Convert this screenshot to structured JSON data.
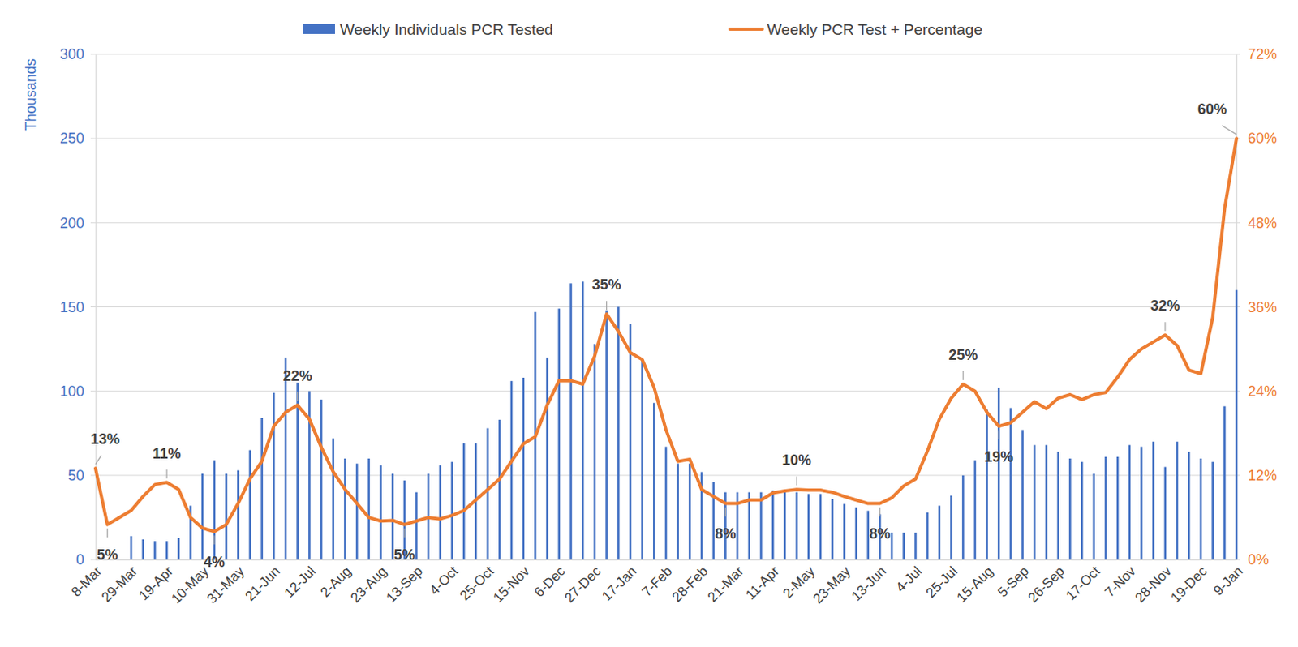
{
  "chart_data": {
    "type": "bar",
    "legend": "top",
    "grid": true,
    "y_label": "Thousands",
    "categories": [
      "8-Mar",
      null,
      null,
      "29-Mar",
      null,
      null,
      "19-Apr",
      null,
      null,
      "10-May",
      null,
      null,
      "31-May",
      null,
      null,
      "21-Jun",
      null,
      null,
      "12-Jul",
      null,
      null,
      "2-Aug",
      null,
      null,
      "23-Aug",
      null,
      null,
      "13-Sep",
      null,
      null,
      "4-Oct",
      null,
      null,
      "25-Oct",
      null,
      null,
      "15-Nov",
      null,
      null,
      "6-Dec",
      null,
      null,
      "27-Dec",
      null,
      null,
      "17-Jan",
      null,
      null,
      "7-Feb",
      null,
      null,
      "28-Feb",
      null,
      null,
      "21-Mar",
      null,
      null,
      "11-Apr",
      null,
      null,
      "2-May",
      null,
      null,
      "23-May",
      null,
      null,
      "13-Jun",
      null,
      null,
      "4-Jul",
      null,
      null,
      "25-Jul",
      null,
      null,
      "15-Aug",
      null,
      null,
      "5-Sep",
      null,
      null,
      "26-Sep",
      null,
      null,
      "17-Oct",
      null,
      null,
      "7-Nov",
      null,
      null,
      "28-Nov",
      null,
      null,
      "19-Dec",
      null,
      null,
      "9-Jan"
    ],
    "ylim": [
      0,
      300
    ],
    "yticks": [
      0,
      50,
      100,
      150,
      200,
      250,
      300
    ],
    "y2lim": [
      0,
      72
    ],
    "y2ticks": [
      {
        "value": 0,
        "label": "0%"
      },
      {
        "value": 12,
        "label": "12%"
      },
      {
        "value": 24,
        "label": "24%"
      },
      {
        "value": 36,
        "label": "36%"
      },
      {
        "value": 48,
        "label": "48%"
      },
      {
        "value": 60,
        "label": "60%"
      },
      {
        "value": 72,
        "label": "72%"
      }
    ],
    "series": [
      {
        "name": "Weekly Individuals PCR Tested",
        "type": "bar",
        "color": "#4472c4",
        "values": [
          null,
          null,
          null,
          14,
          12,
          11,
          11,
          13,
          32,
          51,
          59,
          51,
          53,
          65,
          84,
          99,
          120,
          105,
          100,
          95,
          72,
          60,
          57,
          60,
          56,
          51,
          47,
          40,
          51,
          56,
          58,
          69,
          69,
          78,
          83,
          106,
          108,
          147,
          120,
          149,
          164,
          165,
          128,
          148,
          150,
          140,
          118,
          93,
          67,
          57,
          57,
          52,
          46,
          40,
          40,
          40,
          40,
          41,
          41,
          40,
          39,
          39,
          36,
          33,
          31,
          29,
          27,
          16,
          16,
          16,
          28,
          32,
          38,
          50,
          59,
          89,
          102,
          90,
          77,
          68,
          68,
          64,
          60,
          58,
          51,
          61,
          61,
          68,
          67,
          70,
          55,
          70,
          64,
          60,
          58,
          91,
          160
        ]
      },
      {
        "name": "Weekly PCR Test + Percentage",
        "type": "line",
        "color": "#ed7d31",
        "axis": "y2",
        "data_labels": true,
        "values": [
          13,
          5,
          6,
          7,
          9,
          10.7,
          11,
          10,
          6,
          4.5,
          4,
          5,
          8,
          11.5,
          14,
          19,
          21,
          22,
          20,
          16,
          12.5,
          10,
          8,
          6,
          5.5,
          5.6,
          5,
          5.5,
          6,
          5.8,
          6.3,
          7,
          8.5,
          10,
          11.5,
          14,
          16.5,
          17.5,
          22,
          25.5,
          25.5,
          25,
          29,
          35,
          32.5,
          29.5,
          28.5,
          24.5,
          18.5,
          14,
          14.3,
          10,
          9,
          8,
          8,
          8.5,
          8.5,
          9.5,
          9.8,
          10,
          9.9,
          9.9,
          9.6,
          9,
          8.5,
          8,
          8,
          8.8,
          10.5,
          11.5,
          15.5,
          20,
          23,
          25,
          24,
          21,
          19,
          19.5,
          21,
          22.5,
          21.5,
          23,
          23.5,
          22.8,
          23.5,
          23.8,
          26,
          28.5,
          30,
          31,
          32,
          30.5,
          27,
          26.5,
          34.5,
          50,
          60
        ],
        "value_labels": [
          "13%",
          "5%",
          null,
          null,
          null,
          null,
          "11%",
          null,
          null,
          null,
          "4%",
          null,
          null,
          null,
          null,
          null,
          null,
          "22%",
          null,
          null,
          null,
          null,
          null,
          null,
          null,
          null,
          "5%",
          null,
          null,
          null,
          null,
          null,
          null,
          null,
          null,
          null,
          null,
          null,
          null,
          null,
          null,
          null,
          null,
          "35%",
          null,
          null,
          null,
          null,
          null,
          null,
          null,
          null,
          null,
          "8%",
          null,
          null,
          null,
          null,
          null,
          "10%",
          null,
          null,
          null,
          null,
          null,
          null,
          "8%",
          null,
          null,
          null,
          null,
          null,
          null,
          "25%",
          null,
          null,
          "19%",
          null,
          null,
          null,
          null,
          null,
          null,
          null,
          null,
          null,
          null,
          null,
          null,
          null,
          "32%",
          null,
          null,
          null,
          null,
          null,
          "60%"
        ]
      }
    ]
  }
}
